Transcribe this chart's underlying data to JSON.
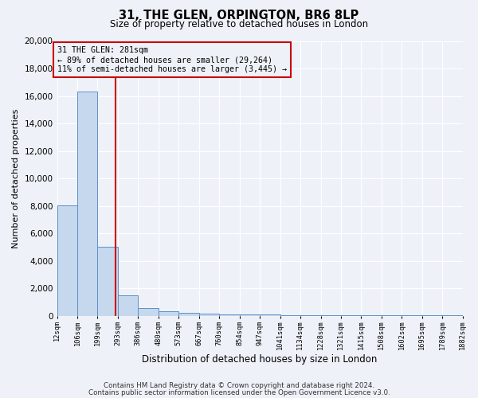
{
  "title": "31, THE GLEN, ORPINGTON, BR6 8LP",
  "subtitle": "Size of property relative to detached houses in London",
  "xlabel": "Distribution of detached houses by size in London",
  "ylabel": "Number of detached properties",
  "footer_line1": "Contains HM Land Registry data © Crown copyright and database right 2024.",
  "footer_line2": "Contains public sector information licensed under the Open Government Licence v3.0.",
  "bar_edges": [
    12,
    106,
    199,
    293,
    386,
    480,
    573,
    667,
    760,
    854,
    947,
    1041,
    1134,
    1228,
    1321,
    1415,
    1508,
    1602,
    1695,
    1789,
    1882
  ],
  "bar_heights": [
    8050,
    16300,
    5000,
    1500,
    550,
    300,
    190,
    150,
    100,
    80,
    80,
    60,
    60,
    50,
    50,
    50,
    50,
    50,
    50,
    50
  ],
  "bar_color": "#c5d8ee",
  "bar_edge_color": "#6090c8",
  "vline_x": 281,
  "vline_color": "#cc0000",
  "annotation_line1": "31 THE GLEN: 281sqm",
  "annotation_line2": "← 89% of detached houses are smaller (29,264)",
  "annotation_line3": "11% of semi-detached houses are larger (3,445) →",
  "annotation_box_edgecolor": "#cc0000",
  "ylim": [
    0,
    20000
  ],
  "yticks": [
    0,
    2000,
    4000,
    6000,
    8000,
    10000,
    12000,
    14000,
    16000,
    18000,
    20000
  ],
  "bg_color": "#eef2f8",
  "grid_color": "#ffffff",
  "tick_labels": [
    "12sqm",
    "106sqm",
    "199sqm",
    "293sqm",
    "386sqm",
    "480sqm",
    "573sqm",
    "667sqm",
    "760sqm",
    "854sqm",
    "947sqm",
    "1041sqm",
    "1134sqm",
    "1228sqm",
    "1321sqm",
    "1415sqm",
    "1508sqm",
    "1602sqm",
    "1695sqm",
    "1789sqm",
    "1882sqm"
  ]
}
